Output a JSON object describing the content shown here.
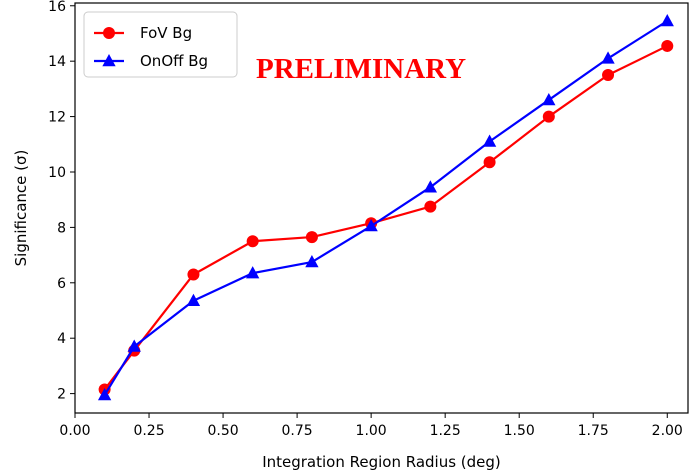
{
  "chart_data": {
    "type": "line",
    "title": "",
    "xlabel": "Integration Region Radius (deg)",
    "ylabel": "Significance (σ)",
    "xlim": [
      0.0,
      2.07
    ],
    "ylim": [
      1.3,
      16.1
    ],
    "xticks": [
      0.0,
      0.25,
      0.5,
      0.75,
      1.0,
      1.25,
      1.5,
      1.75,
      2.0
    ],
    "xtick_labels": [
      "0.00",
      "0.25",
      "0.50",
      "0.75",
      "1.00",
      "1.25",
      "1.50",
      "1.75",
      "2.00"
    ],
    "yticks": [
      2,
      4,
      6,
      8,
      10,
      12,
      14,
      16
    ],
    "ytick_labels": [
      "2",
      "4",
      "6",
      "8",
      "10",
      "12",
      "14",
      "16"
    ],
    "grid": false,
    "legend_position": "top-left",
    "annotation": {
      "text": "PRELIMINARY",
      "color": "#ff0000"
    },
    "series": [
      {
        "name": "FoV Bg",
        "color": "#ff0000",
        "marker": "circle",
        "x": [
          0.1,
          0.2,
          0.4,
          0.6,
          0.8,
          1.0,
          1.2,
          1.4,
          1.6,
          1.8,
          2.0
        ],
        "y": [
          2.15,
          3.55,
          6.3,
          7.5,
          7.65,
          8.15,
          8.75,
          10.35,
          12.0,
          13.5,
          14.55
        ]
      },
      {
        "name": "OnOff Bg",
        "color": "#0000ff",
        "marker": "triangle",
        "x": [
          0.1,
          0.2,
          0.4,
          0.6,
          0.8,
          1.0,
          1.2,
          1.4,
          1.6,
          1.8,
          2.0
        ],
        "y": [
          1.95,
          3.7,
          5.35,
          6.35,
          6.75,
          8.05,
          9.45,
          11.1,
          12.6,
          14.1,
          15.45
        ]
      }
    ]
  }
}
